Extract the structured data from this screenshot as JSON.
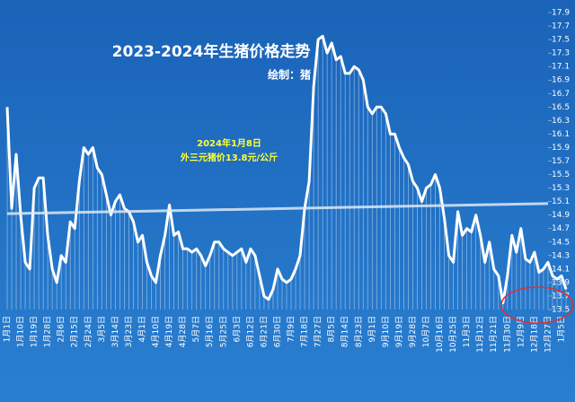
{
  "chart_data": {
    "type": "line",
    "title": "2023-2024年生猪价格走势",
    "subtitle": "绘制：猪",
    "annotations": [
      "2024年1月8日",
      "外三元猪价13.8元/公斤"
    ],
    "categories": [
      "1月1日",
      null,
      null,
      "1月10日",
      null,
      null,
      "1月19日",
      null,
      null,
      "1月28日",
      null,
      null,
      "2月6日",
      null,
      null,
      "2月15日",
      null,
      null,
      "2月24日",
      null,
      null,
      "3月5日",
      null,
      null,
      "3月14日",
      null,
      null,
      "3月23日",
      null,
      null,
      "4月1日",
      null,
      null,
      "4月10日",
      null,
      null,
      "4月19日",
      null,
      null,
      "4月28日",
      null,
      null,
      "5月7日",
      null,
      null,
      "5月16日",
      null,
      null,
      "5月25日",
      null,
      null,
      "6月3日",
      null,
      null,
      "6月12日",
      null,
      null,
      "6月21日",
      null,
      null,
      "6月30日",
      null,
      null,
      "7月9日",
      null,
      null,
      "7月18日",
      null,
      null,
      "7月27日",
      null,
      null,
      "8月5日",
      null,
      null,
      "8月14日",
      null,
      null,
      "8月23日",
      null,
      null,
      "9月1日",
      null,
      null,
      "9月10日",
      null,
      null,
      "9月19日",
      null,
      null,
      "9月28日",
      null,
      null,
      "10月7日",
      null,
      null,
      "10月16日",
      null,
      null,
      "10月25日",
      null,
      null,
      "11月3日",
      null,
      null,
      "11月12日",
      null,
      null,
      "11月21日",
      null,
      null,
      "11月30日",
      null,
      null,
      "12月9日",
      null,
      null,
      "12月18日",
      null,
      null,
      "12月27日",
      null,
      null,
      "1月5日",
      null
    ],
    "values": [
      16.5,
      15.0,
      15.8,
      14.9,
      14.2,
      14.1,
      15.3,
      15.45,
      15.45,
      14.6,
      14.1,
      13.9,
      14.3,
      14.2,
      14.8,
      14.7,
      15.4,
      15.9,
      15.8,
      15.9,
      15.6,
      15.5,
      15.2,
      14.9,
      15.1,
      15.2,
      15.0,
      14.95,
      14.8,
      14.5,
      14.6,
      14.2,
      14.0,
      13.9,
      14.3,
      14.6,
      15.05,
      14.6,
      14.65,
      14.4,
      14.4,
      14.35,
      14.4,
      14.3,
      14.15,
      14.3,
      14.5,
      14.5,
      14.4,
      14.35,
      14.3,
      14.35,
      14.4,
      14.2,
      14.4,
      14.3,
      14.0,
      13.7,
      13.65,
      13.8,
      14.1,
      13.95,
      13.9,
      13.95,
      14.1,
      14.3,
      15.0,
      15.4,
      16.8,
      17.5,
      17.55,
      17.3,
      17.45,
      17.2,
      17.25,
      17.0,
      17.0,
      17.1,
      17.05,
      16.9,
      16.5,
      16.4,
      16.5,
      16.5,
      16.4,
      16.1,
      16.1,
      15.9,
      15.75,
      15.65,
      15.4,
      15.3,
      15.1,
      15.3,
      15.35,
      15.5,
      15.3,
      14.85,
      14.3,
      14.2,
      14.95,
      14.6,
      14.7,
      14.65,
      14.9,
      14.6,
      14.2,
      14.5,
      14.1,
      14.0,
      13.6,
      14.0,
      14.6,
      14.35,
      14.7,
      14.25,
      14.2,
      14.35,
      14.05,
      14.1,
      14.2,
      14.0,
      13.95,
      14.0,
      13.8
    ],
    "color": "#ffffff",
    "trend_line": [
      14.92,
      15.07
    ],
    "ylim": [
      13.5,
      17.9
    ],
    "yticks": [
      13.5,
      13.7,
      13.9,
      14.1,
      14.3,
      14.5,
      14.7,
      14.9,
      15.1,
      15.3,
      15.5,
      15.7,
      15.9,
      16.1,
      16.3,
      16.5,
      16.7,
      16.9,
      17.1,
      17.3,
      17.5,
      17.7,
      17.9
    ]
  }
}
